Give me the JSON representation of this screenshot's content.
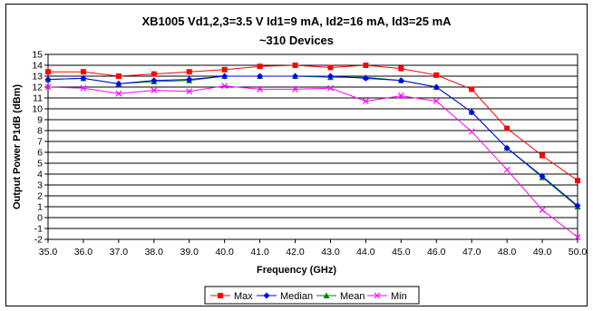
{
  "chart_data": {
    "type": "line",
    "title": "XB1005 Vd1,2,3=3.5 V Id1=9 mA, Id2=16 mA, Id3=25 mA",
    "subtitle": "~310 Devices",
    "xlabel": "Frequency (GHz)",
    "ylabel": "Output Power P1dB (dBm)",
    "xlim": [
      35.0,
      50.0
    ],
    "ylim": [
      -2,
      15
    ],
    "x": [
      "35.0",
      "36.0",
      "37.0",
      "38.0",
      "39.0",
      "40.0",
      "41.0",
      "42.0",
      "43.0",
      "44.0",
      "45.0",
      "46.0",
      "47.0",
      "48.0",
      "49.0",
      "50.0"
    ],
    "yticks": [
      "15",
      "14",
      "13",
      "12",
      "11",
      "10",
      "9",
      "8",
      "7",
      "6",
      "5",
      "4",
      "3",
      "2",
      "1",
      "0",
      "-1",
      "-2"
    ],
    "grid": "horizontal",
    "legend_position": "bottom",
    "series": [
      {
        "name": "Max",
        "color": "#ff0000",
        "marker": "square",
        "values": [
          13.4,
          13.4,
          13.0,
          13.2,
          13.4,
          13.6,
          13.9,
          14.0,
          13.8,
          14.0,
          13.7,
          13.1,
          11.8,
          8.2,
          5.7,
          3.4
        ]
      },
      {
        "name": "Median",
        "color": "#0000ff",
        "marker": "diamond",
        "values": [
          12.7,
          12.8,
          12.3,
          12.6,
          12.7,
          13.0,
          13.0,
          13.0,
          13.0,
          12.8,
          12.6,
          12.0,
          9.7,
          6.4,
          3.8,
          1.1
        ]
      },
      {
        "name": "Mean",
        "color": "#008000",
        "marker": "triangle",
        "values": [
          12.7,
          12.8,
          12.3,
          12.5,
          12.6,
          13.0,
          13.0,
          13.0,
          12.9,
          12.9,
          12.6,
          12.0,
          9.7,
          6.4,
          3.7,
          1.0
        ]
      },
      {
        "name": "Min",
        "color": "#ff00ff",
        "marker": "x",
        "values": [
          12.0,
          11.9,
          11.4,
          11.7,
          11.6,
          12.1,
          11.8,
          11.8,
          11.9,
          10.7,
          11.2,
          10.7,
          7.9,
          4.4,
          0.7,
          -1.8
        ]
      }
    ]
  }
}
